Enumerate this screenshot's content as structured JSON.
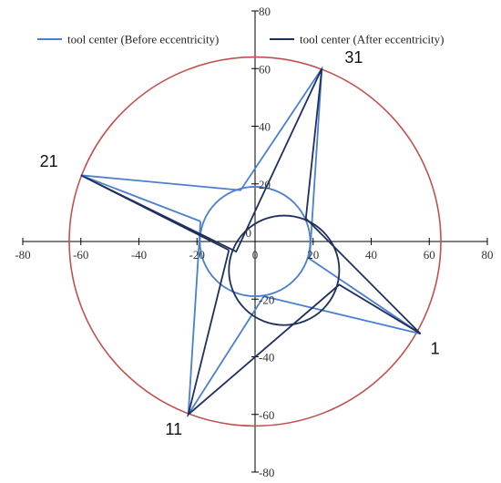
{
  "chart_data": {
    "type": "scatter",
    "xlim": [
      -80,
      80
    ],
    "ylim": [
      -80,
      80
    ],
    "xticks": [
      -80,
      -60,
      -40,
      -20,
      0,
      20,
      40,
      60,
      80
    ],
    "yticks": [
      -80,
      -60,
      -40,
      -20,
      0,
      20,
      40,
      60,
      80
    ],
    "grid": false,
    "legend_placement": "top",
    "outer_circle": {
      "center": [
        0,
        0
      ],
      "radius": 64,
      "color": "#c0504d"
    },
    "series": [
      {
        "name": "tool center (Before eccentricity)",
        "color": "#4a7fd1",
        "base_circle": {
          "center": [
            0,
            0
          ],
          "radius": 19
        },
        "path": [
          [
            -18.8,
            7
          ],
          [
            -60,
            23
          ],
          [
            -5,
            17.8
          ],
          [
            23,
            60
          ],
          [
            18.8,
            -6
          ],
          [
            57,
            -32
          ],
          [
            3,
            -19
          ],
          [
            -23,
            -60
          ],
          [
            -18.8,
            7
          ]
        ]
      },
      {
        "name": "tool center (After eccentricity)",
        "color": "#1f2f5e",
        "base_circle": {
          "center": [
            10,
            -10
          ],
          "radius": 19
        },
        "path": [
          [
            -9,
            -3
          ],
          [
            -60,
            23
          ],
          [
            -6.5,
            -3.5
          ],
          [
            23,
            60
          ],
          [
            17.5,
            8
          ],
          [
            57,
            -32
          ],
          [
            29,
            -15
          ],
          [
            -23,
            -60
          ],
          [
            -9,
            -3
          ]
        ]
      }
    ],
    "annotations": [
      {
        "text": "1",
        "x": 62,
        "y": -39
      },
      {
        "text": "11",
        "x": -28,
        "y": -67
      },
      {
        "text": "21",
        "x": -71,
        "y": 26
      },
      {
        "text": "31",
        "x": 34,
        "y": 62
      }
    ]
  }
}
